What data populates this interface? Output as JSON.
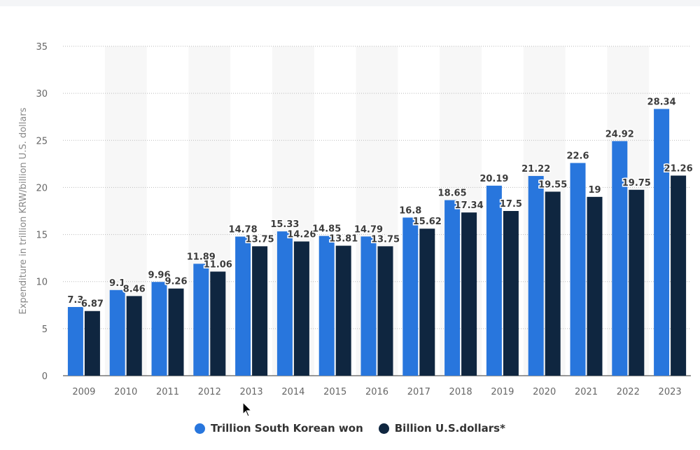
{
  "chart_data": {
    "type": "bar",
    "categories": [
      "2009",
      "2010",
      "2011",
      "2012",
      "2013",
      "2014",
      "2015",
      "2016",
      "2017",
      "2018",
      "2019",
      "2020",
      "2021",
      "2022",
      "2023"
    ],
    "series": [
      {
        "name": "Trillion South Korean won",
        "color": "#2876dd",
        "values": [
          7.3,
          9.1,
          9.96,
          11.89,
          14.78,
          15.33,
          14.85,
          14.79,
          16.8,
          18.65,
          20.19,
          21.22,
          22.6,
          24.92,
          28.34
        ]
      },
      {
        "name": "Billion U.S.dollars*",
        "color": "#0f2640",
        "values": [
          6.87,
          8.46,
          9.26,
          11.06,
          13.75,
          14.26,
          13.81,
          13.75,
          15.62,
          17.34,
          17.5,
          19.55,
          19,
          19.75,
          21.26
        ]
      }
    ],
    "ylabel": "Expenditure in trillion KRW/billion U.S. dollars",
    "xlabel": "",
    "ylim": [
      0,
      35
    ],
    "yticks": [
      0,
      5,
      10,
      15,
      20,
      25,
      30,
      35
    ],
    "grid": true,
    "legend": "bottom"
  }
}
